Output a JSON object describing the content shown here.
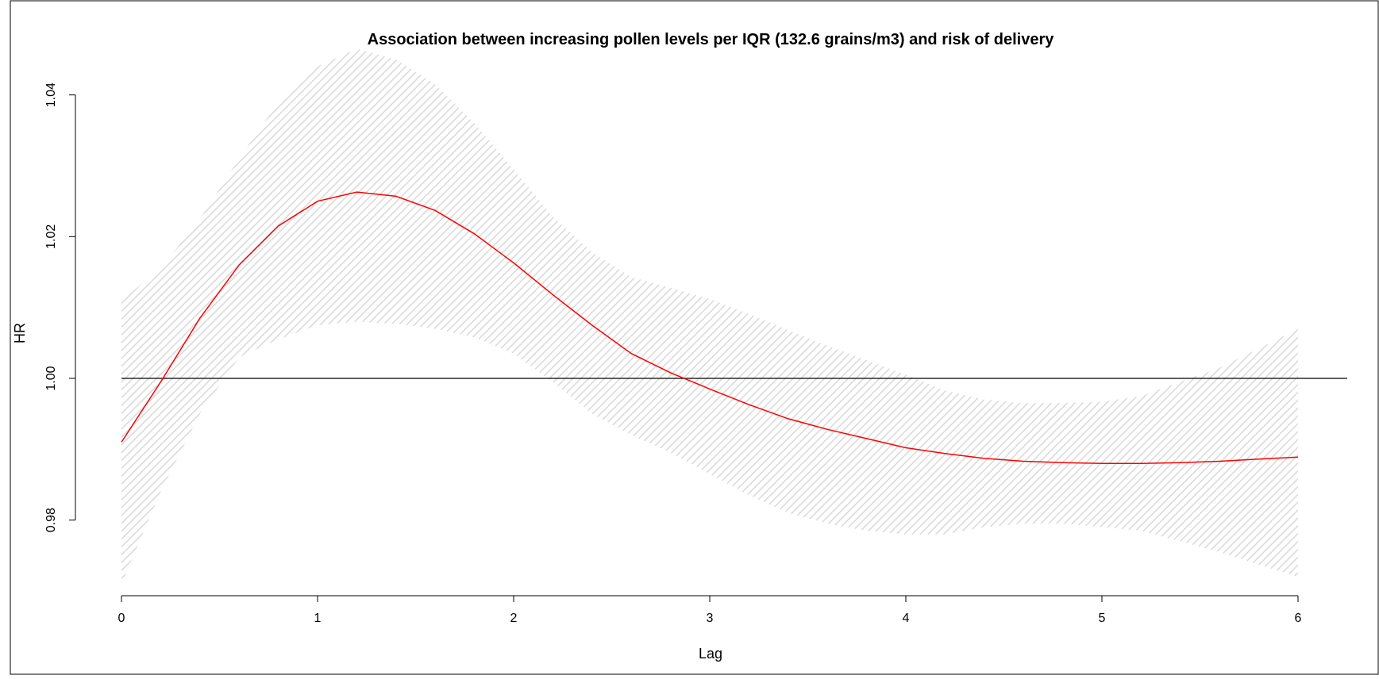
{
  "chart_data": {
    "type": "line",
    "title": "Association between increasing pollen levels per IQR (132.6 grains/m3) and risk of delivery",
    "xlabel": "Lag",
    "ylabel": "HR",
    "xlim": [
      0,
      6
    ],
    "ylim": [
      0.97,
      1.045
    ],
    "x_ticks": [
      0,
      1,
      2,
      3,
      4,
      5,
      6
    ],
    "x_tick_labels": [
      "0",
      "1",
      "2",
      "3",
      "4",
      "5",
      "6"
    ],
    "y_ticks": [
      0.98,
      1.0,
      1.02,
      1.04
    ],
    "y_tick_labels": [
      "0.98",
      "1.00",
      "1.02",
      "1.04"
    ],
    "reference_line": 1.0,
    "grid": false,
    "colors": {
      "line": "#ff0000",
      "band": "#d9d9d9",
      "reference": "#000000"
    },
    "series": [
      {
        "type": "line",
        "x": [
          0,
          0.2,
          0.4,
          0.6,
          0.8,
          1.0,
          1.2,
          1.4,
          1.6,
          1.8,
          2.0,
          2.2,
          2.4,
          2.6,
          2.8,
          3.0,
          3.2,
          3.4,
          3.6,
          3.8,
          4.0,
          4.2,
          4.4,
          4.6,
          4.8,
          5.0,
          5.2,
          5.4,
          5.6,
          5.8,
          6.0
        ],
        "y": [
          0.991,
          0.9995,
          1.0085,
          1.016,
          1.0215,
          1.025,
          1.0263,
          1.0257,
          1.0237,
          1.0204,
          1.0163,
          1.0118,
          1.0075,
          1.0035,
          1.0008,
          0.9985,
          0.9963,
          0.9943,
          0.9928,
          0.9915,
          0.9902,
          0.9894,
          0.9887,
          0.9883,
          0.9881,
          0.988,
          0.988,
          0.9881,
          0.9883,
          0.9886,
          0.9889
        ]
      }
    ],
    "confidence_band": {
      "x": [
        0,
        0.2,
        0.4,
        0.6,
        0.8,
        1.0,
        1.2,
        1.4,
        1.6,
        1.8,
        2.0,
        2.2,
        2.4,
        2.6,
        2.8,
        3.0,
        3.2,
        3.4,
        3.6,
        3.8,
        4.0,
        4.2,
        4.4,
        4.6,
        4.8,
        5.0,
        5.2,
        5.4,
        5.6,
        5.8,
        6.0
      ],
      "lower": [
        0.971,
        0.984,
        0.995,
        1.003,
        1.0055,
        1.0075,
        1.008,
        1.0077,
        1.007,
        1.0058,
        1.0035,
        0.9995,
        0.995,
        0.992,
        0.9895,
        0.9865,
        0.9835,
        0.981,
        0.9795,
        0.9785,
        0.978,
        0.978,
        0.979,
        0.9795,
        0.9795,
        0.979,
        0.9785,
        0.977,
        0.9755,
        0.9737,
        0.972
      ],
      "upper": [
        1.011,
        1.0155,
        1.0225,
        1.031,
        1.039,
        1.044,
        1.0465,
        1.045,
        1.0415,
        1.036,
        1.0295,
        1.0228,
        1.0178,
        1.0143,
        1.0128,
        1.0112,
        1.0091,
        1.0068,
        1.0046,
        1.0026,
        1.0005,
        0.9983,
        0.997,
        0.9965,
        0.9965,
        0.9967,
        0.9975,
        0.9995,
        1.0015,
        1.0042,
        1.007
      ]
    }
  }
}
